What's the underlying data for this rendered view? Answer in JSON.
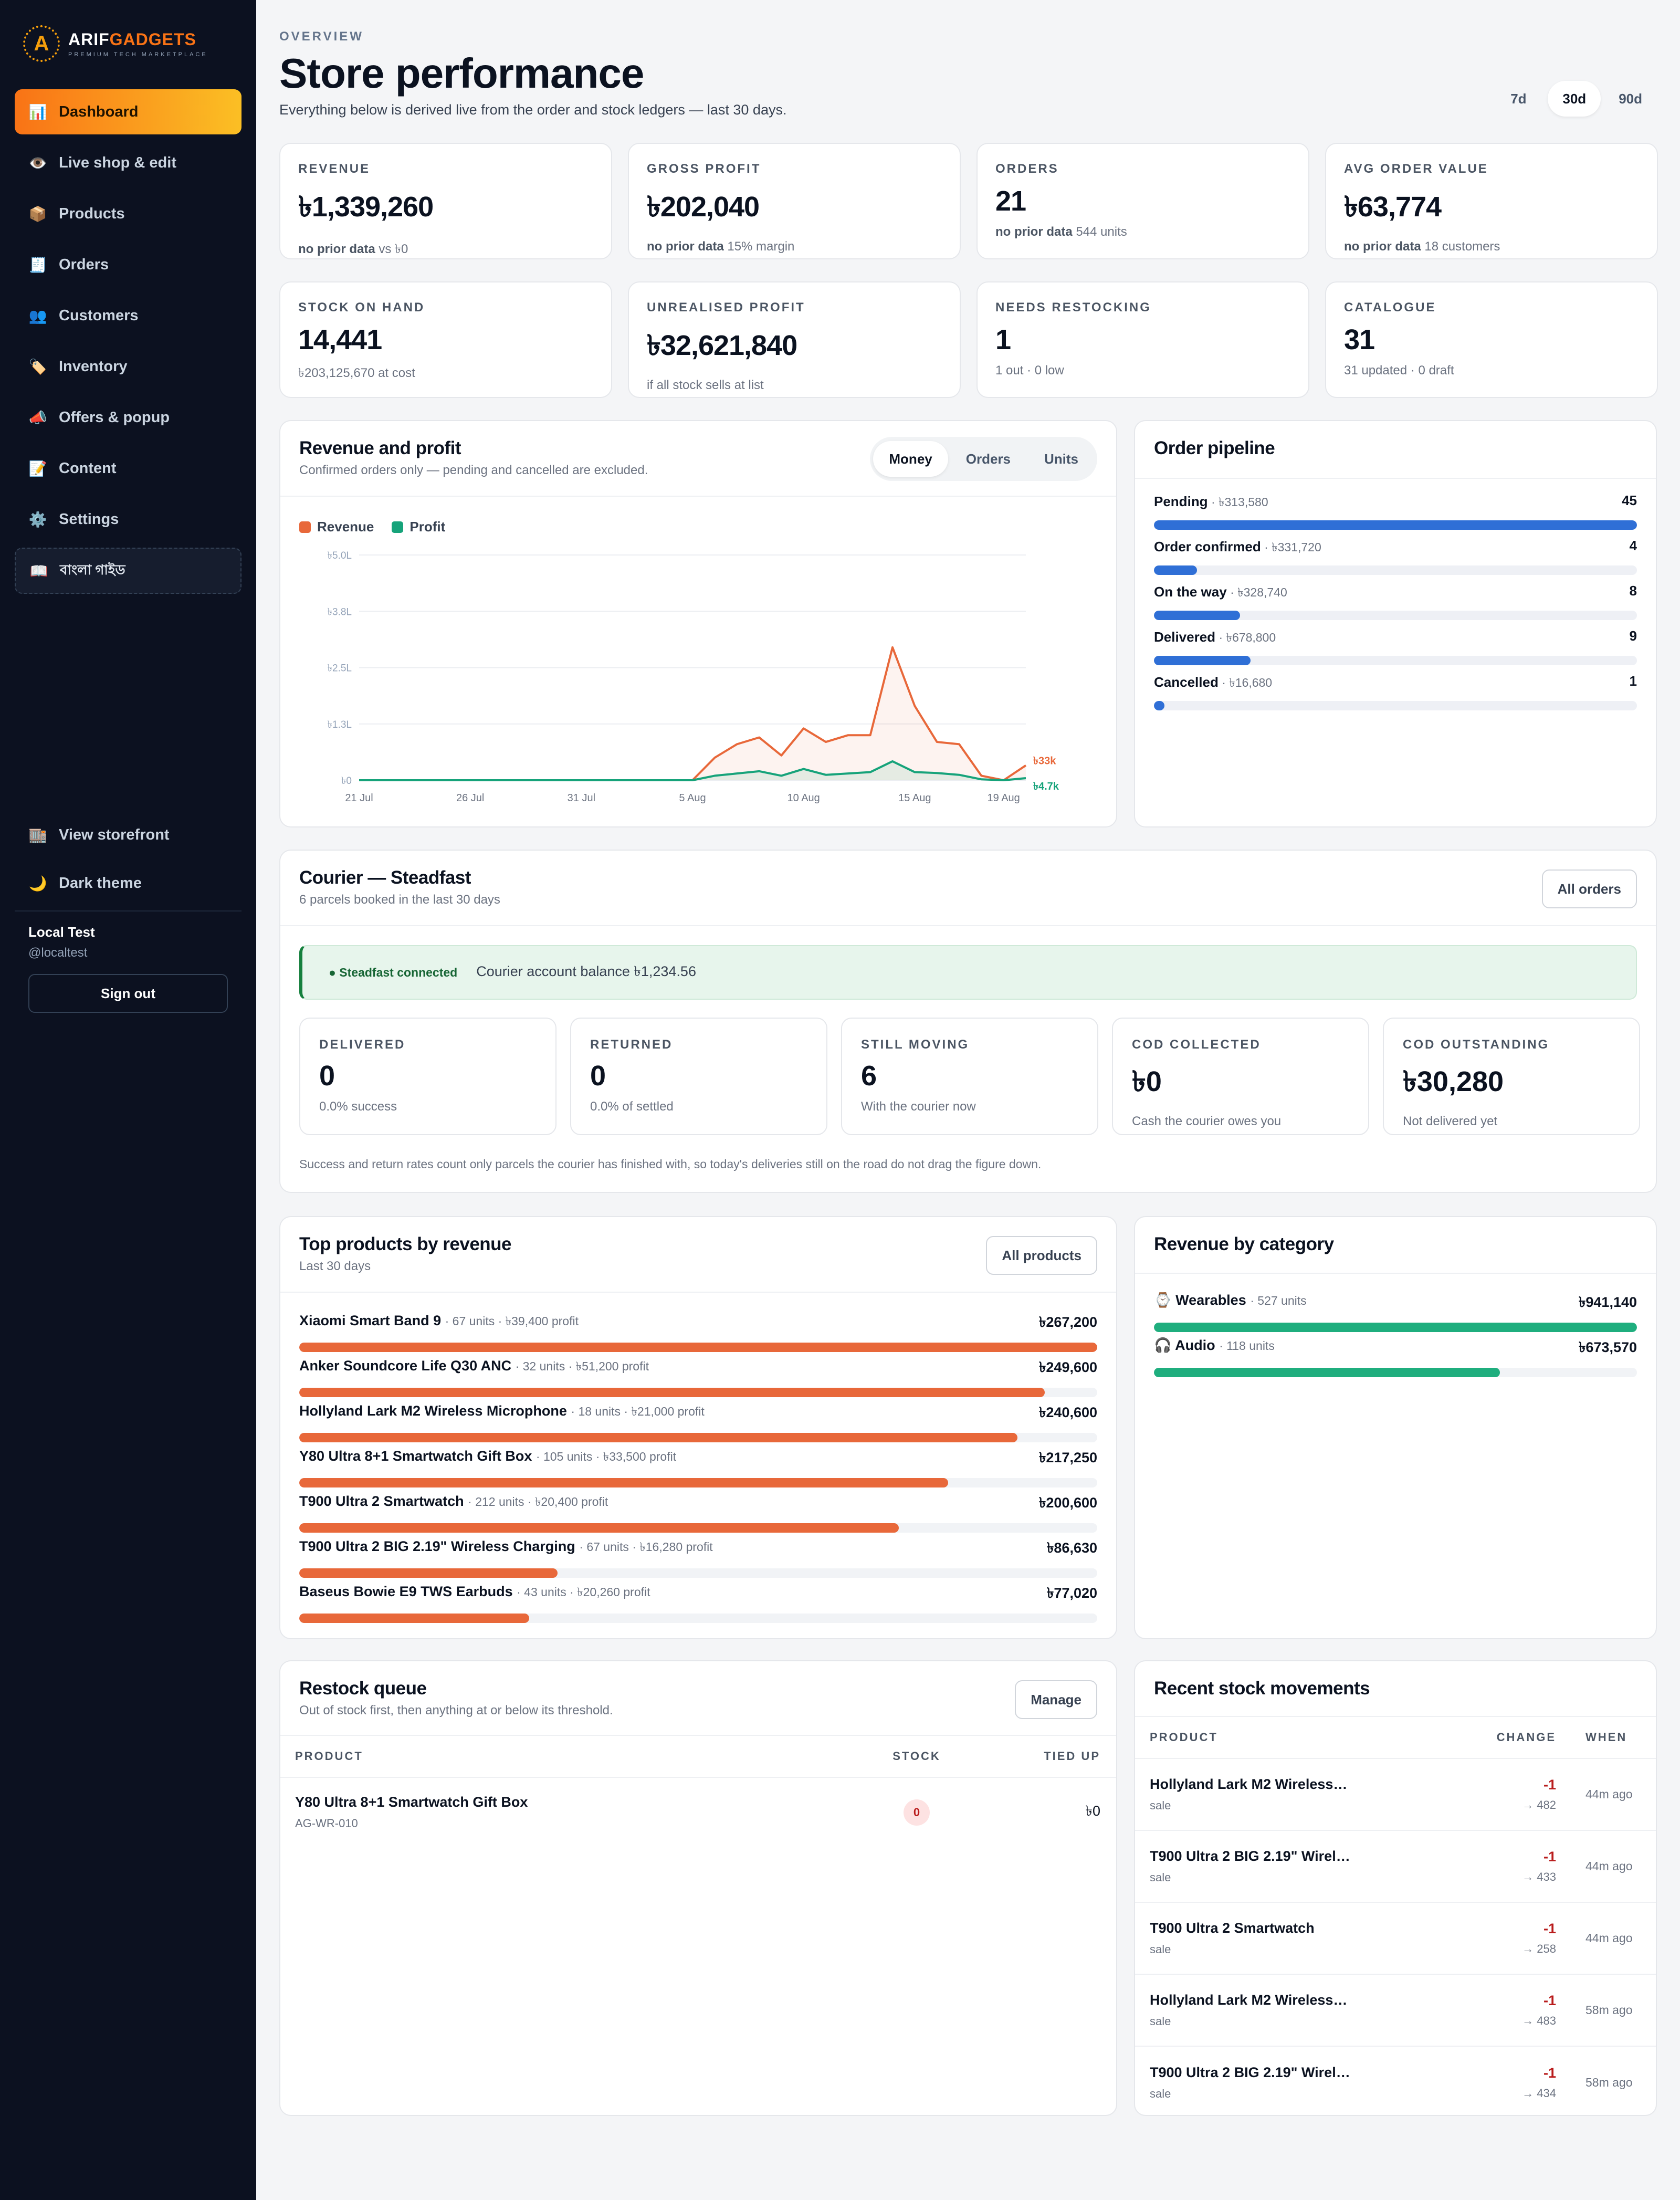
{
  "brand": {
    "name_a": "ARIF",
    "name_b": "GADGETS",
    "tagline": "PREMIUM TECH MARKETPLACE",
    "mark": "A"
  },
  "nav": [
    {
      "label": "Dashboard",
      "icon": "📊",
      "icon_name": "chart-icon",
      "active": true
    },
    {
      "label": "Live shop & edit",
      "icon": "👁️",
      "icon_name": "eye-icon"
    },
    {
      "label": "Products",
      "icon": "📦",
      "icon_name": "package-icon"
    },
    {
      "label": "Orders",
      "icon": "🧾",
      "icon_name": "receipt-icon"
    },
    {
      "label": "Customers",
      "icon": "👥",
      "icon_name": "users-icon"
    },
    {
      "label": "Inventory",
      "icon": "🏷️",
      "icon_name": "tag-icon"
    },
    {
      "label": "Offers & popup",
      "icon": "📣",
      "icon_name": "megaphone-icon"
    },
    {
      "label": "Content",
      "icon": "📝",
      "icon_name": "memo-icon"
    },
    {
      "label": "Settings",
      "icon": "⚙️",
      "icon_name": "gear-icon"
    }
  ],
  "guide": {
    "label": "বাংলা গাইড",
    "icon": "📖"
  },
  "side_links": {
    "storefront": "View storefront",
    "storefront_icon": "🏬",
    "theme": "Dark theme",
    "theme_icon": "🌙"
  },
  "user": {
    "name": "Local Test",
    "handle": "@localtest",
    "signout": "Sign out"
  },
  "header": {
    "eyebrow": "OVERVIEW",
    "title": "Store performance",
    "subtitle": "Everything below is derived live from the order and stock ledgers — last 30 days.",
    "ranges": [
      "7d",
      "30d",
      "90d"
    ],
    "active_range": "30d"
  },
  "kpis": [
    {
      "label": "REVENUE",
      "value": "৳1,339,260",
      "note_b": "no prior data",
      "note": "vs ৳0"
    },
    {
      "label": "GROSS PROFIT",
      "value": "৳202,040",
      "note_b": "no prior data",
      "note": "15% margin"
    },
    {
      "label": "ORDERS",
      "value": "21",
      "note_b": "no prior data",
      "note": "544 units"
    },
    {
      "label": "AVG ORDER VALUE",
      "value": "৳63,774",
      "note_b": "no prior data",
      "note": "18 customers"
    },
    {
      "label": "STOCK ON HAND",
      "value": "14,441",
      "note_b": "",
      "note": "৳203,125,670 at cost"
    },
    {
      "label": "UNREALISED PROFIT",
      "value": "৳32,621,840",
      "note_b": "",
      "note": "if all stock sells at list"
    },
    {
      "label": "NEEDS RESTOCKING",
      "value": "1",
      "note_b": "",
      "note": "1 out · 0 low"
    },
    {
      "label": "CATALOGUE",
      "value": "31",
      "note_b": "",
      "note": "31 updated · 0 draft"
    }
  ],
  "revenue_chart": {
    "title": "Revenue and profit",
    "subtitle": "Confirmed orders only — pending and cancelled are excluded.",
    "modes": [
      "Money",
      "Orders",
      "Units"
    ],
    "active_mode": "Money"
  },
  "chart_data": {
    "type": "area",
    "x": [
      "21 Jul",
      "22 Jul",
      "23 Jul",
      "24 Jul",
      "25 Jul",
      "26 Jul",
      "27 Jul",
      "28 Jul",
      "29 Jul",
      "30 Jul",
      "31 Jul",
      "1 Aug",
      "2 Aug",
      "3 Aug",
      "4 Aug",
      "5 Aug",
      "6 Aug",
      "7 Aug",
      "8 Aug",
      "9 Aug",
      "10 Aug",
      "11 Aug",
      "12 Aug",
      "13 Aug",
      "14 Aug",
      "15 Aug",
      "16 Aug",
      "17 Aug",
      "18 Aug",
      "19 Aug",
      "20 Aug"
    ],
    "xticks": [
      "21 Jul",
      "26 Jul",
      "31 Jul",
      "5 Aug",
      "10 Aug",
      "15 Aug",
      "19 Aug"
    ],
    "yticks": [
      "৳0",
      "৳1.3L",
      "৳2.5L",
      "৳3.8L",
      "৳5.0L"
    ],
    "ytick_values": [
      0,
      125000,
      250000,
      375000,
      500000
    ],
    "ylim": [
      0,
      500000
    ],
    "series": [
      {
        "name": "Revenue",
        "color": "#e8683a",
        "end_label": "৳33k",
        "values": [
          0,
          0,
          0,
          0,
          0,
          0,
          0,
          0,
          0,
          0,
          0,
          0,
          0,
          0,
          0,
          0,
          50000,
          80000,
          95000,
          55000,
          115000,
          85000,
          100000,
          100000,
          295000,
          165000,
          85000,
          80000,
          10000,
          0,
          33000
        ]
      },
      {
        "name": "Profit",
        "color": "#16a37a",
        "end_label": "৳4.7k",
        "values": [
          0,
          0,
          0,
          0,
          0,
          0,
          0,
          0,
          0,
          0,
          0,
          0,
          0,
          0,
          0,
          0,
          10000,
          15000,
          20000,
          10000,
          25000,
          12000,
          15000,
          18000,
          42000,
          18000,
          16000,
          12000,
          2000,
          0,
          4700
        ]
      }
    ],
    "legend": "top-left",
    "grid": true
  },
  "pipeline": {
    "title": "Order pipeline",
    "rows": [
      {
        "label": "Pending",
        "amount": "৳313,580",
        "count": "45",
        "fraction": 1.0
      },
      {
        "label": "Order confirmed",
        "amount": "৳331,720",
        "count": "4",
        "fraction": 0.089
      },
      {
        "label": "On the way",
        "amount": "৳328,740",
        "count": "8",
        "fraction": 0.178
      },
      {
        "label": "Delivered",
        "amount": "৳678,800",
        "count": "9",
        "fraction": 0.2
      },
      {
        "label": "Cancelled",
        "amount": "৳16,680",
        "count": "1",
        "fraction": 0.022
      }
    ],
    "bar_color": "#2f6fd6"
  },
  "courier": {
    "title": "Courier — Steadfast",
    "subtitle": "6 parcels booked in the last 30 days",
    "button": "All orders",
    "status": "● Steadfast connected",
    "balance": "Courier account balance ৳1,234.56",
    "stats": [
      {
        "label": "DELIVERED",
        "value": "0",
        "note": "0.0% success"
      },
      {
        "label": "RETURNED",
        "value": "0",
        "note": "0.0% of settled"
      },
      {
        "label": "STILL MOVING",
        "value": "6",
        "note": "With the courier now"
      },
      {
        "label": "COD COLLECTED",
        "value": "৳0",
        "note": "Cash the courier owes you"
      },
      {
        "label": "COD OUTSTANDING",
        "value": "৳30,280",
        "note": "Not delivered yet"
      }
    ],
    "footnote": "Success and return rates count only parcels the courier has finished with, so today's deliveries still on the road do not drag the figure down."
  },
  "top_products": {
    "title": "Top products by revenue",
    "subtitle": "Last 30 days",
    "button": "All products",
    "bar_color": "#e8683a",
    "rows": [
      {
        "name": "Xiaomi Smart Band 9",
        "meta": "· 67 units · ৳39,400 profit",
        "value": "৳267,200",
        "fraction": 1.0
      },
      {
        "name": "Anker Soundcore Life Q30 ANC",
        "meta": "· 32 units · ৳51,200 profit",
        "value": "৳249,600",
        "fraction": 0.934
      },
      {
        "name": "Hollyland Lark M2 Wireless Microphone",
        "meta": "· 18 units · ৳21,000 profit",
        "value": "৳240,600",
        "fraction": 0.9
      },
      {
        "name": "Y80 Ultra 8+1 Smartwatch Gift Box",
        "meta": "· 105 units · ৳33,500 profit",
        "value": "৳217,250",
        "fraction": 0.813
      },
      {
        "name": "T900 Ultra 2 Smartwatch",
        "meta": "· 212 units · ৳20,400 profit",
        "value": "৳200,600",
        "fraction": 0.751
      },
      {
        "name": "T900 Ultra 2 BIG 2.19\" Wireless Charging",
        "meta": "· 67 units · ৳16,280 profit",
        "value": "৳86,630",
        "fraction": 0.324
      },
      {
        "name": "Baseus Bowie E9 TWS Earbuds",
        "meta": "· 43 units · ৳20,260 profit",
        "value": "৳77,020",
        "fraction": 0.288
      }
    ]
  },
  "categories": {
    "title": "Revenue by category",
    "bar_color": "#1fae7e",
    "rows": [
      {
        "icon": "⌚",
        "name": "Wearables",
        "meta": "· 527 units",
        "value": "৳941,140",
        "fraction": 1.0
      },
      {
        "icon": "🎧",
        "name": "Audio",
        "meta": "· 118 units",
        "value": "৳673,570",
        "fraction": 0.716
      }
    ]
  },
  "restock": {
    "title": "Restock queue",
    "subtitle": "Out of stock first, then anything at or below its threshold.",
    "button": "Manage",
    "columns": [
      "PRODUCT",
      "STOCK",
      "TIED UP"
    ],
    "rows": [
      {
        "name": "Y80 Ultra 8+1 Smartwatch Gift Box",
        "sku": "AG-WR-010",
        "stock": "0",
        "tied": "৳0"
      }
    ]
  },
  "movements": {
    "title": "Recent stock movements",
    "columns": [
      "PRODUCT",
      "CHANGE",
      "WHEN"
    ],
    "rows": [
      {
        "name": "Hollyland Lark M2 Wireless…",
        "reason": "sale",
        "change": "-1",
        "after": "→ 482",
        "when": "44m ago"
      },
      {
        "name": "T900 Ultra 2 BIG 2.19\" Wirel…",
        "reason": "sale",
        "change": "-1",
        "after": "→ 433",
        "when": "44m ago"
      },
      {
        "name": "T900 Ultra 2 Smartwatch",
        "reason": "sale",
        "change": "-1",
        "after": "→ 258",
        "when": "44m ago"
      },
      {
        "name": "Hollyland Lark M2 Wireless…",
        "reason": "sale",
        "change": "-1",
        "after": "→ 483",
        "when": "58m ago"
      },
      {
        "name": "T900 Ultra 2 BIG 2.19\" Wirel…",
        "reason": "sale",
        "change": "-1",
        "after": "→ 434",
        "when": "58m ago"
      }
    ]
  }
}
